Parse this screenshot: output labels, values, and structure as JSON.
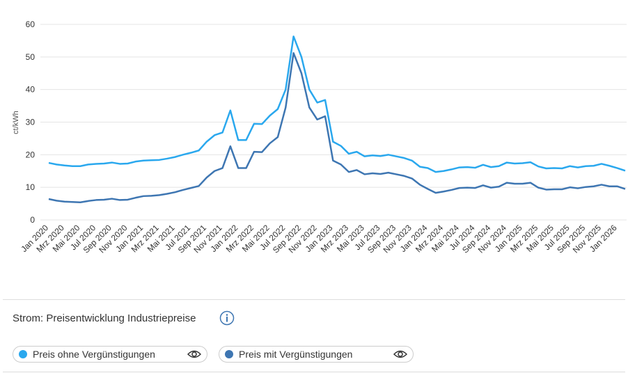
{
  "chart_data": {
    "type": "line",
    "title": "Strom: Preisentwicklung Industriepreise",
    "y_label": "ct/kWh",
    "categories": [
      "Jan 2020",
      null,
      "Mrz 2020",
      null,
      "Mai 2020",
      null,
      "Jul 2020",
      null,
      "Sep 2020",
      null,
      "Nov 2020",
      null,
      "Jan 2021",
      null,
      "Mrz 2021",
      null,
      "Mai 2021",
      null,
      "Jul 2021",
      null,
      "Sep 2021",
      null,
      "Nov 2021",
      null,
      "Jan 2022",
      null,
      "Mrz 2022",
      null,
      "Mai 2022",
      null,
      "Jul 2022",
      null,
      "Sep 2022",
      null,
      "Nov 2022",
      null,
      "Jan 2023",
      null,
      "Mrz 2023",
      null,
      "Mai 2023",
      null,
      "Jul 2023",
      null,
      "Sep 2023",
      null,
      "Nov 2023",
      null,
      "Jan 2024",
      null,
      "Mrz 2024",
      null,
      "Mai 2024",
      null,
      "Jul 2024",
      null,
      "Sep 2024",
      null,
      "Nov 2024",
      null,
      "Jan 2025",
      null,
      "Mrz 2025",
      null,
      "Mai 2025",
      null,
      "Jul 2025",
      null,
      "Sep 2025",
      null,
      "Nov 2025",
      null,
      "Jan 2026",
      null
    ],
    "series": [
      {
        "name": "Preis ohne Vergünstigungen",
        "color": "#2aa8ee",
        "values": [
          17.5,
          17,
          16.7,
          16.5,
          16.5,
          17,
          17.2,
          17.3,
          17.6,
          17.2,
          17.3,
          17.9,
          18.2,
          18.3,
          18.4,
          18.8,
          19.3,
          20,
          20.6,
          21.3,
          24,
          26,
          26.8,
          33.6,
          24.5,
          24.5,
          29.5,
          29.4,
          32,
          34,
          40,
          56.3,
          50,
          40,
          36,
          36.8,
          24,
          22.7,
          20.3,
          20.9,
          19.5,
          19.8,
          19.6,
          20,
          19.5,
          19,
          18.2,
          16.3,
          15.9,
          14.7,
          15,
          15.5,
          16.1,
          16.2,
          16,
          16.9,
          16.2,
          16.5,
          17.6,
          17.3,
          17.4,
          17.7,
          16.4,
          15.8,
          15.9,
          15.8,
          16.5,
          16.1,
          16.5,
          16.6,
          17.2,
          16.6,
          15.9,
          15.1
        ]
      },
      {
        "name": "Preis mit Vergünstigungen",
        "color": "#3e76b2",
        "values": [
          6.4,
          5.9,
          5.6,
          5.5,
          5.4,
          5.8,
          6.1,
          6.2,
          6.5,
          6.1,
          6.2,
          6.8,
          7.3,
          7.4,
          7.6,
          8,
          8.5,
          9.2,
          9.8,
          10.4,
          13,
          15,
          15.9,
          22.6,
          15.9,
          15.9,
          20.9,
          20.8,
          23.5,
          25.4,
          34.5,
          51.2,
          45,
          34.5,
          30.8,
          31.8,
          18.2,
          17,
          14.7,
          15.3,
          14,
          14.3,
          14.1,
          14.5,
          14,
          13.5,
          12.7,
          10.8,
          9.5,
          8.3,
          8.7,
          9.2,
          9.8,
          9.9,
          9.8,
          10.6,
          9.9,
          10.2,
          11.4,
          11.1,
          11.1,
          11.4,
          9.9,
          9.3,
          9.4,
          9.4,
          10,
          9.7,
          10.1,
          10.3,
          10.8,
          10.3,
          10.3,
          9.5
        ]
      }
    ],
    "ylim": [
      0,
      60
    ],
    "yticks": [
      0,
      10,
      20,
      30,
      40,
      50,
      60
    ],
    "grid": true
  }
}
